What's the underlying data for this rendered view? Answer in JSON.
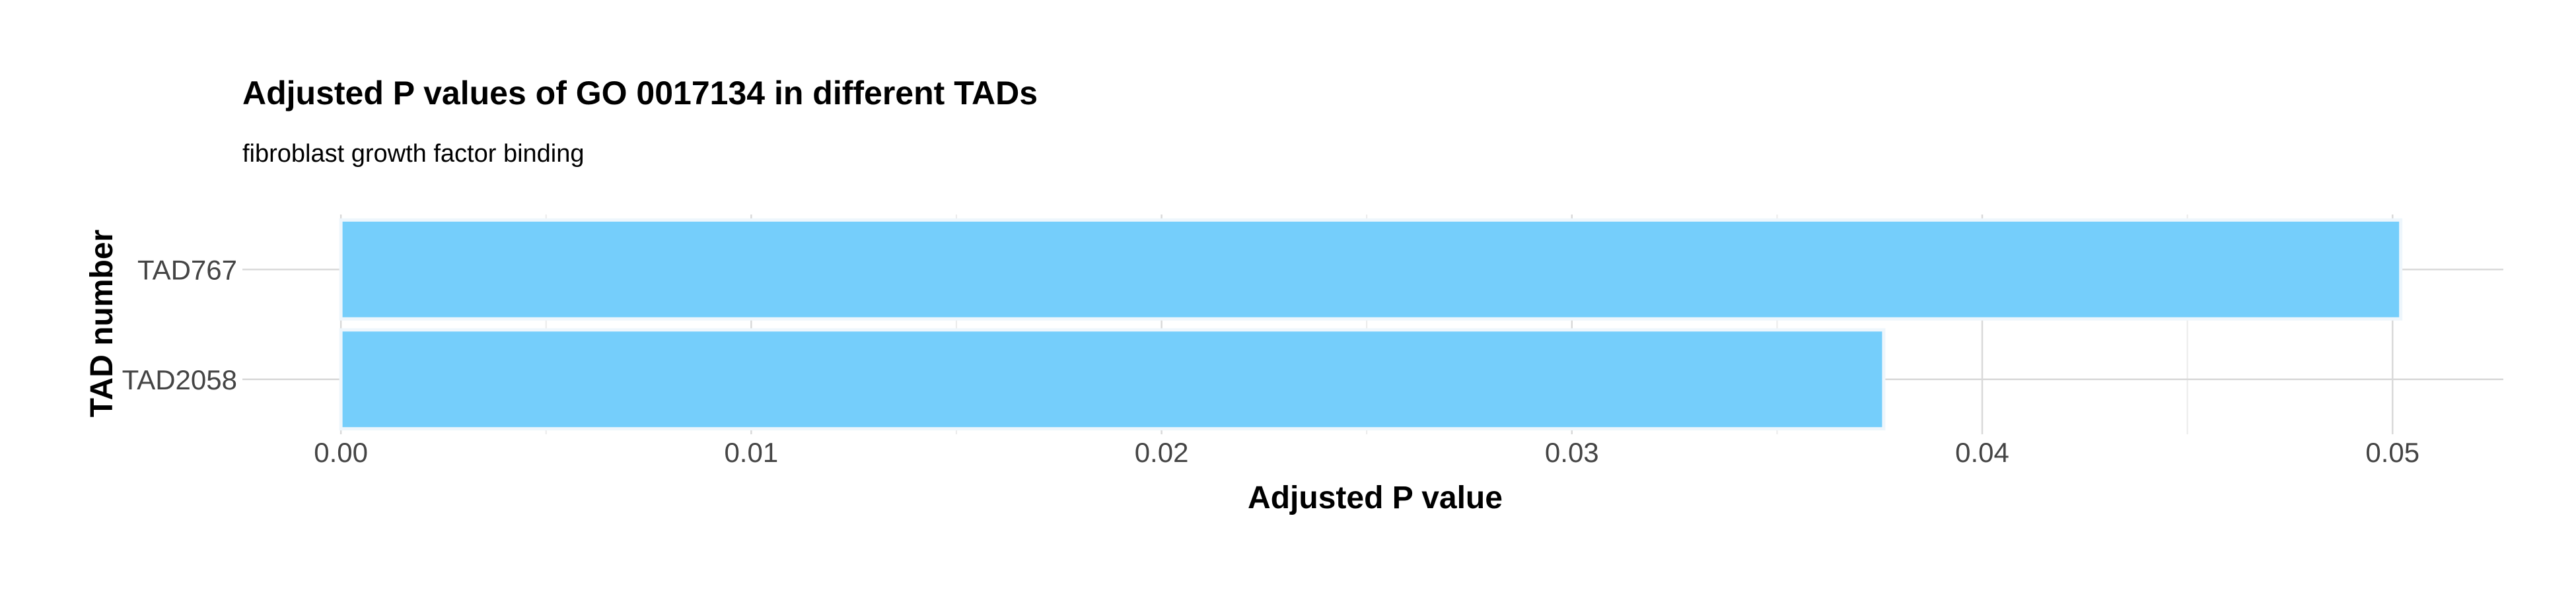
{
  "chart_data": {
    "type": "bar",
    "orientation": "horizontal",
    "title": "Adjusted P values of GO 0017134 in different TADs",
    "subtitle": "fibroblast growth factor binding",
    "xlabel": "Adjusted P value",
    "ylabel": "TAD number",
    "categories": [
      "TAD767",
      "TAD2058"
    ],
    "values": [
      0.0502,
      0.0376
    ],
    "xlim": [
      -0.0024,
      0.0527
    ],
    "xticks": [
      "0.00",
      "0.01",
      "0.02",
      "0.03",
      "0.04",
      "0.05"
    ],
    "bar_color": "#75CEFB",
    "grid": true,
    "legend": "none"
  }
}
